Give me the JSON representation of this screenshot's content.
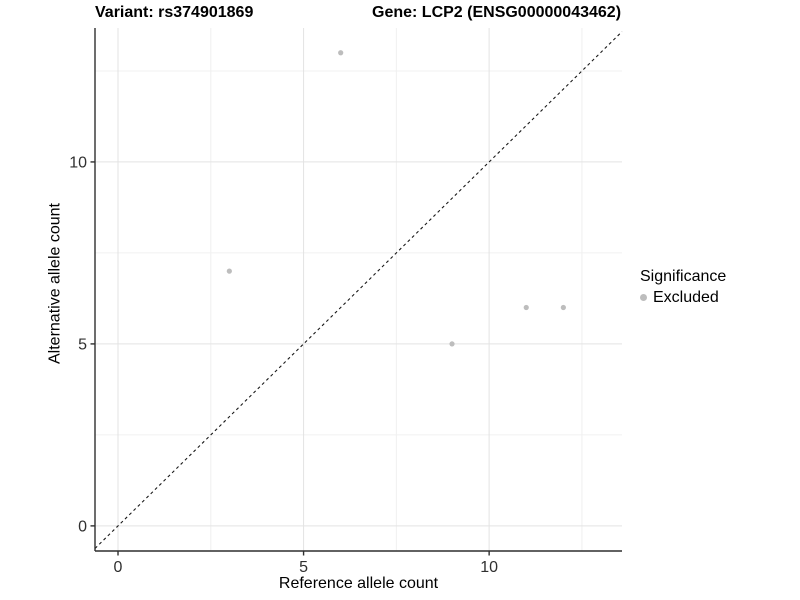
{
  "chart_data": {
    "type": "scatter",
    "title_left": "Variant: rs374901869",
    "title_right": "Gene: LCP2 (ENSG00000043462)",
    "xlabel": "Reference allele count",
    "ylabel": "Alternative allele count",
    "x_ticks": [
      0,
      5,
      10
    ],
    "x_tick_labels": [
      "0",
      "5",
      "10"
    ],
    "y_ticks": [
      0,
      5,
      10
    ],
    "y_tick_labels": [
      "0",
      "5",
      "10"
    ],
    "x_minor_gridlines": [
      2.5,
      7.5,
      12.5
    ],
    "y_minor_gridlines": [
      2.5,
      7.5,
      12.5
    ],
    "xlim": [
      -0.62,
      13.58
    ],
    "ylim": [
      -0.69,
      13.68
    ],
    "grid": true,
    "identity_line": {
      "style": "dashed",
      "slope": 1,
      "intercept": 0
    },
    "series": [
      {
        "name": "Excluded",
        "color": "#bdbdbd",
        "points": [
          [
            3,
            7
          ],
          [
            6,
            13
          ],
          [
            9,
            5
          ],
          [
            11,
            6
          ],
          [
            12,
            6
          ]
        ]
      }
    ],
    "legend": {
      "title": "Significance",
      "position": "right",
      "entries": [
        {
          "label": "Excluded",
          "color": "#bdbdbd"
        }
      ]
    },
    "colors": {
      "background": "#ffffff",
      "grid_major": "#e3e3e3",
      "grid_minor": "#f0f0f0",
      "axis": "#2f2f2f",
      "identity_line": "#1a1a1a",
      "tick_text": "#303030",
      "point": "#bdbdbd"
    }
  }
}
